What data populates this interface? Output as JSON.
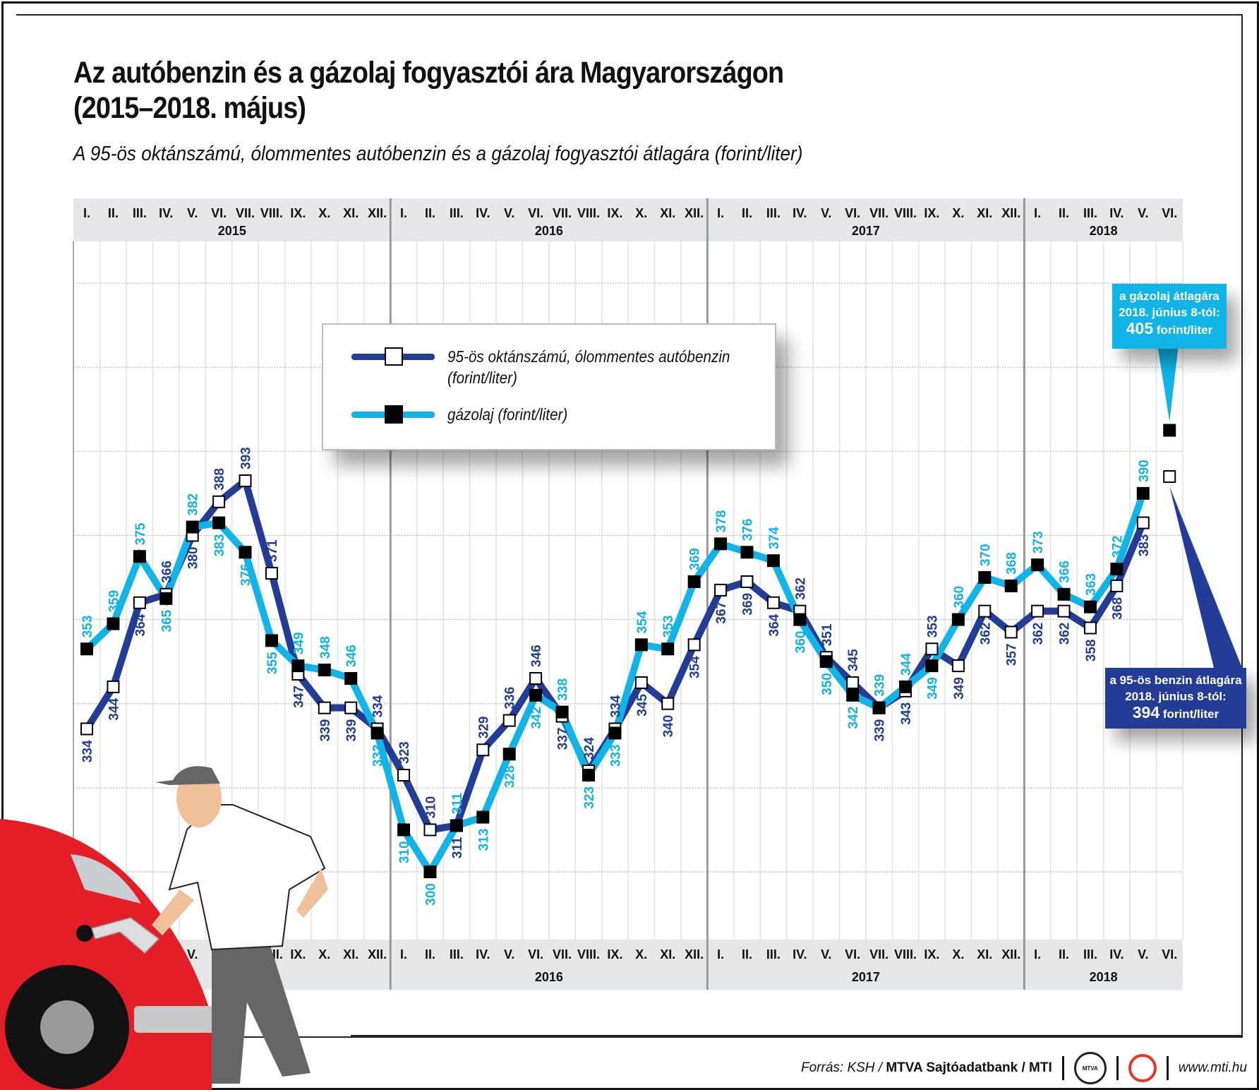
{
  "title_line1": "Az autóbenzin és a gázolaj fogyasztói ára Magyarországon",
  "title_line2": "(2015–2018. május)",
  "subtitle": "A 95-ös oktánszámú, ólommentes autóbenzin és a gázolaj fogyasztói átlagára (forint/liter)",
  "chart_data": {
    "type": "line",
    "title": "Az autóbenzin és a gázolaj fogyasztói ára Magyarországon (2015–2018. május)",
    "subtitle": "A 95-ös oktánszámú, ólommentes autóbenzin és a gázolaj fogyasztói átlagára (forint/liter)",
    "month_labels": [
      "I.",
      "II.",
      "III.",
      "IV.",
      "V.",
      "VI.",
      "VII.",
      "VIII.",
      "IX.",
      "X.",
      "XI.",
      "XII."
    ],
    "years": [
      {
        "label": "2015",
        "months": 12
      },
      {
        "label": "2016",
        "months": 12
      },
      {
        "label": "2017",
        "months": 12
      },
      {
        "label": "2018",
        "months": 6
      }
    ],
    "ylim": [
      280,
      450
    ],
    "grid_step": 20,
    "grid": true,
    "legend_position": "top-center",
    "series": [
      {
        "name": "95-ös oktánszámú, ólommentes autóbenzin",
        "name_line2": "(forint/liter)",
        "color": "#233d97",
        "marker": "white-square",
        "values": [
          334,
          344,
          364,
          366,
          380,
          388,
          393,
          371,
          347,
          339,
          339,
          334,
          323,
          310,
          311,
          329,
          336,
          346,
          337,
          324,
          334,
          345,
          340,
          354,
          367,
          369,
          364,
          362,
          351,
          345,
          339,
          343,
          353,
          349,
          362,
          357,
          362,
          362,
          358,
          368,
          383
        ],
        "june_2018": 394
      },
      {
        "name": "gázolaj (forint/liter)",
        "color": "#10b4e6",
        "marker": "black-square",
        "values": [
          353,
          359,
          375,
          365,
          382,
          383,
          376,
          355,
          349,
          348,
          346,
          333,
          310,
          300,
          311,
          313,
          328,
          342,
          338,
          323,
          333,
          354,
          353,
          369,
          378,
          376,
          374,
          360,
          350,
          342,
          339,
          344,
          349,
          360,
          370,
          368,
          373,
          366,
          363,
          372,
          390
        ],
        "june_2018": 405
      }
    ]
  },
  "callouts": {
    "diesel": {
      "line1": "a gázolaj átlagára",
      "line2": "2018. június 8-tól:",
      "value": "405",
      "unit": "forint/liter",
      "color": "#10b4e6"
    },
    "petrol": {
      "line1": "a 95-ös benzin átlagára",
      "line2": "2018. június 8-tól:",
      "value": "394",
      "unit": "forint/liter",
      "color": "#233d97"
    }
  },
  "footer": {
    "source_prefix": "Forrás: KSH /",
    "source_bold": "MTVA Sajtóadatbank",
    "source_mti": "/ MTI",
    "logo1": "MTVA",
    "url": "www.mti.hu"
  }
}
